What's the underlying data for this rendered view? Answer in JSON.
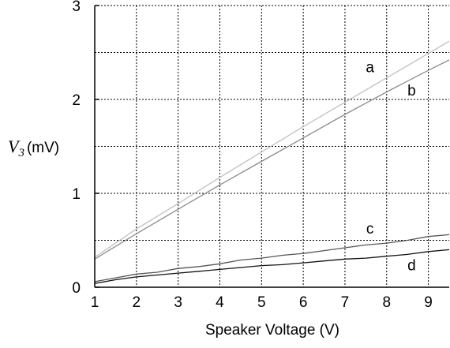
{
  "chart_data": {
    "type": "line",
    "xlabel": "Speaker Voltage (V)",
    "ylabel": {
      "symbol": "V",
      "subscript": "3",
      "unit": "(mV)"
    },
    "xlim": [
      1,
      9.5
    ],
    "ylim": [
      0,
      3
    ],
    "x_ticks": [
      1,
      2,
      3,
      4,
      5,
      6,
      7,
      8,
      9
    ],
    "y_ticks": [
      0,
      1,
      2,
      3
    ],
    "grid": true,
    "series": [
      {
        "name": "a",
        "color": "#c0c0c0",
        "points": [
          [
            1,
            0.32
          ],
          [
            2,
            0.62
          ],
          [
            3,
            0.89
          ],
          [
            4,
            1.17
          ],
          [
            5,
            1.44
          ],
          [
            6,
            1.71
          ],
          [
            7,
            1.97
          ],
          [
            8,
            2.23
          ],
          [
            9,
            2.49
          ],
          [
            9.5,
            2.62
          ]
        ]
      },
      {
        "name": "b",
        "color": "#8c8c8c",
        "points": [
          [
            1,
            0.3
          ],
          [
            2,
            0.57
          ],
          [
            3,
            0.83
          ],
          [
            4,
            1.09
          ],
          [
            5,
            1.34
          ],
          [
            6,
            1.59
          ],
          [
            7,
            1.84
          ],
          [
            8,
            2.08
          ],
          [
            9,
            2.31
          ],
          [
            9.5,
            2.42
          ]
        ]
      },
      {
        "name": "c",
        "color": "#555555",
        "points": [
          [
            1,
            0.06
          ],
          [
            1.5,
            0.1
          ],
          [
            2,
            0.14
          ],
          [
            2.5,
            0.16
          ],
          [
            3,
            0.2
          ],
          [
            3.5,
            0.22
          ],
          [
            4,
            0.25
          ],
          [
            4.5,
            0.29
          ],
          [
            5,
            0.31
          ],
          [
            5.5,
            0.34
          ],
          [
            6,
            0.36
          ],
          [
            6.5,
            0.39
          ],
          [
            7,
            0.42
          ],
          [
            7.5,
            0.45
          ],
          [
            8,
            0.47
          ],
          [
            8.5,
            0.5
          ],
          [
            9,
            0.54
          ],
          [
            9.5,
            0.56
          ]
        ]
      },
      {
        "name": "d",
        "color": "#111111",
        "points": [
          [
            1,
            0.04
          ],
          [
            1.5,
            0.08
          ],
          [
            2,
            0.11
          ],
          [
            2.5,
            0.13
          ],
          [
            3,
            0.15
          ],
          [
            3.5,
            0.17
          ],
          [
            4,
            0.19
          ],
          [
            4.5,
            0.21
          ],
          [
            5,
            0.23
          ],
          [
            5.5,
            0.24
          ],
          [
            6,
            0.26
          ],
          [
            6.5,
            0.28
          ],
          [
            7,
            0.3
          ],
          [
            7.5,
            0.31
          ],
          [
            8,
            0.33
          ],
          [
            8.5,
            0.35
          ],
          [
            9,
            0.38
          ],
          [
            9.5,
            0.4
          ]
        ]
      }
    ],
    "annotations": [
      {
        "text": "a",
        "x": 7.6,
        "y": 2.29
      },
      {
        "text": "b",
        "x": 8.6,
        "y": 2.04
      },
      {
        "text": "c",
        "x": 7.6,
        "y": 0.57
      },
      {
        "text": "d",
        "x": 8.6,
        "y": 0.18
      }
    ]
  }
}
